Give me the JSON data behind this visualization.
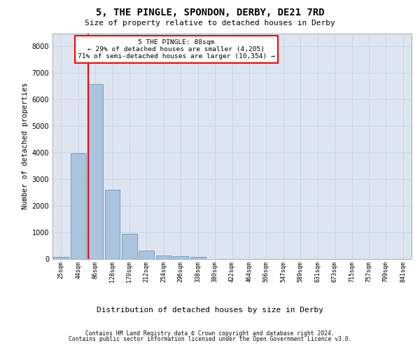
{
  "title_line1": "5, THE PINGLE, SPONDON, DERBY, DE21 7RD",
  "title_line2": "Size of property relative to detached houses in Derby",
  "xlabel": "Distribution of detached houses by size in Derby",
  "ylabel": "Number of detached properties",
  "bin_labels": [
    "25sqm",
    "44sqm",
    "86sqm",
    "128sqm",
    "170sqm",
    "212sqm",
    "254sqm",
    "296sqm",
    "338sqm",
    "380sqm",
    "422sqm",
    "464sqm",
    "506sqm",
    "547sqm",
    "589sqm",
    "631sqm",
    "673sqm",
    "715sqm",
    "757sqm",
    "799sqm",
    "841sqm"
  ],
  "bar_values": [
    80,
    3980,
    6580,
    2620,
    960,
    310,
    125,
    110,
    90,
    0,
    0,
    0,
    0,
    0,
    0,
    0,
    0,
    0,
    0,
    0,
    0
  ],
  "bar_color": "#aac4de",
  "bar_edge_color": "#6699bb",
  "grid_color": "#c8d4e4",
  "background_color": "#dde6f0",
  "annotation_text": "5 THE PINGLE: 88sqm\n← 29% of detached houses are smaller (4,205)\n71% of semi-detached houses are larger (10,354) →",
  "red_line_x": 1.58,
  "ylim": [
    0,
    8500
  ],
  "yticks": [
    0,
    1000,
    2000,
    3000,
    4000,
    5000,
    6000,
    7000,
    8000
  ],
  "footer_line1": "Contains HM Land Registry data © Crown copyright and database right 2024.",
  "footer_line2": "Contains public sector information licensed under the Open Government Licence v3.0."
}
